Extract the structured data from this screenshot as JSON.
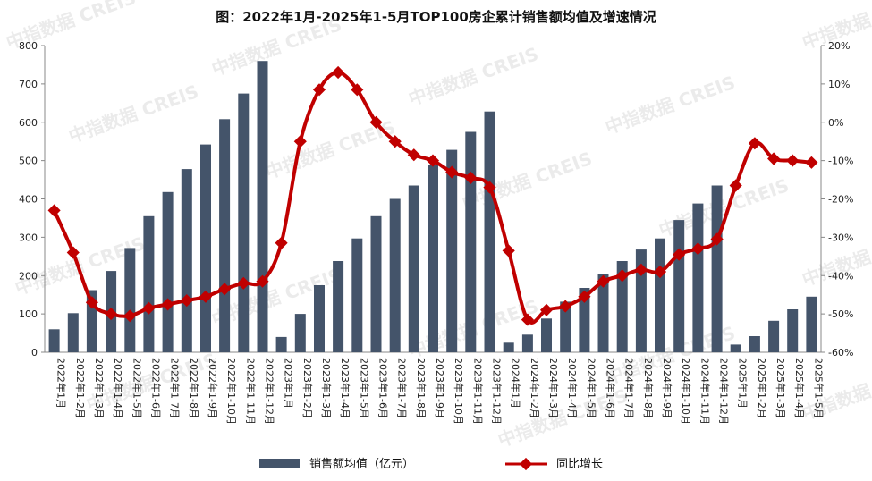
{
  "title": "图：2022年1月-2025年1-5月TOP100房企累计销售额均值及增速情况",
  "watermark": "中指数据 CREIS",
  "chart_data": {
    "type": "bar+line",
    "categories": [
      "2022年1月",
      "2022年1-2月",
      "2022年1-3月",
      "2022年1-4月",
      "2022年1-5月",
      "2022年1-6月",
      "2022年1-7月",
      "2022年1-8月",
      "2022年1-9月",
      "2022年1-10月",
      "2022年1-11月",
      "2022年1-12月",
      "2023年1月",
      "2023年1-2月",
      "2023年1-3月",
      "2023年1-4月",
      "2023年1-5月",
      "2023年1-6月",
      "2023年1-7月",
      "2023年1-8月",
      "2023年1-9月",
      "2023年1-10月",
      "2023年1-11月",
      "2023年1-12月",
      "2024年1月",
      "2024年1-2月",
      "2024年1-3月",
      "2024年1-4月",
      "2024年1-5月",
      "2024年1-6月",
      "2024年1-7月",
      "2024年1-8月",
      "2024年1-9月",
      "2024年1-10月",
      "2024年1-11月",
      "2024年1-12月",
      "2025年1月",
      "2025年1-2月",
      "2025年1-3月",
      "2025年1-4月",
      "2025年1-5月"
    ],
    "series": [
      {
        "name": "销售额均值（亿元）",
        "type": "bar",
        "axis": "left",
        "color": "#44546a",
        "values": [
          60,
          102,
          162,
          212,
          272,
          355,
          418,
          478,
          542,
          608,
          675,
          760,
          40,
          100,
          175,
          238,
          297,
          355,
          400,
          435,
          488,
          528,
          575,
          628,
          25,
          46,
          88,
          132,
          168,
          205,
          238,
          268,
          297,
          345,
          388,
          435,
          20,
          42,
          82,
          112,
          145
        ]
      },
      {
        "name": "同比增长",
        "type": "line",
        "axis": "right",
        "color": "#c00000",
        "values": [
          -23,
          -34,
          -47,
          -50,
          -50.5,
          -48.5,
          -47.5,
          -46.5,
          -45.5,
          -43.5,
          -42,
          -41.5,
          -31.5,
          -5,
          8.5,
          13,
          8.5,
          0,
          -5,
          -8.5,
          -10,
          -13,
          -14.5,
          -17,
          -33.5,
          -51.5,
          -49,
          -48,
          -45.5,
          -41.5,
          -40,
          -38.5,
          -39,
          -34.5,
          -33,
          -30.5,
          -16.5,
          -5.5,
          -9.5,
          -10,
          -10.5
        ]
      }
    ],
    "y_left": {
      "min": 0,
      "max": 800,
      "step": 100,
      "ticks": [
        "0",
        "100",
        "200",
        "300",
        "400",
        "500",
        "600",
        "700",
        "800"
      ]
    },
    "y_right": {
      "min": -60,
      "max": 20,
      "step": 10,
      "ticks": [
        "-60%",
        "-50%",
        "-40%",
        "-30%",
        "-20%",
        "-10%",
        "0%",
        "10%",
        "20%"
      ]
    },
    "grid": false,
    "legend_position": "bottom-center"
  },
  "colors": {
    "bar": "#44546a",
    "line": "#c00000",
    "axis": "#888888"
  }
}
